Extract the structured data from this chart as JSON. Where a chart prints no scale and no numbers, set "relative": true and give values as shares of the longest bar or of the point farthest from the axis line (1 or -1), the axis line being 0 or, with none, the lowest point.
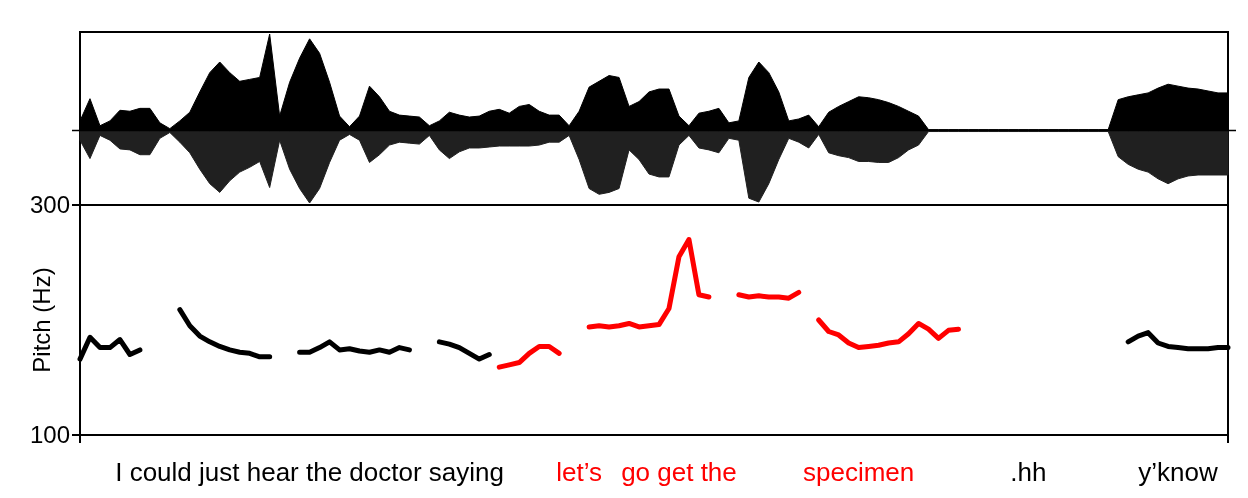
{
  "chart_data": [
    {
      "type": "area",
      "relative": true,
      "categories": [
        null,
        null,
        null,
        null,
        null,
        null,
        null,
        null,
        null,
        null,
        null,
        null,
        null,
        null,
        null,
        null,
        null,
        null,
        null,
        null,
        null,
        null,
        null,
        null,
        null,
        null,
        null,
        null,
        null,
        null,
        null,
        null,
        null,
        null,
        null,
        null,
        null,
        null,
        null,
        null,
        null,
        null,
        null,
        null,
        null,
        null,
        null,
        null,
        null,
        null,
        null,
        null,
        null,
        null,
        null,
        null,
        null,
        null,
        null,
        null,
        null,
        null,
        null,
        null,
        null,
        null,
        null,
        null,
        null,
        null,
        null,
        null,
        null,
        null,
        null,
        null,
        null,
        null,
        null,
        null,
        null,
        null,
        null,
        null,
        null,
        null,
        null,
        null,
        null,
        null,
        null,
        null,
        null,
        null,
        null,
        null,
        null,
        null,
        null,
        null,
        null,
        null,
        null,
        null,
        null,
        null,
        null,
        null,
        null,
        null,
        null,
        null,
        null,
        null,
        null,
        null
      ],
      "series": [
        {
          "color": "#000000",
          "values": [
            0.1,
            0.33,
            0.05,
            0.1,
            0.21,
            0.2,
            0.23,
            0.23,
            0.08,
            0.02,
            0.1,
            0.19,
            0.4,
            0.6,
            0.71,
            0.6,
            0.51,
            0.53,
            0.55,
            1,
            0.15,
            0.5,
            0.75,
            0.95,
            0.8,
            0.5,
            0.15,
            0.04,
            0.15,
            0.46,
            0.35,
            0.2,
            0.16,
            0.15,
            0.14,
            0.05,
            0.1,
            0.19,
            0.16,
            0.14,
            0.15,
            0.2,
            0.22,
            0.18,
            0.25,
            0.27,
            0.2,
            0.16,
            0.16,
            0.05,
            0.2,
            0.45,
            0.51,
            0.57,
            0.55,
            0.25,
            0.3,
            0.4,
            0.43,
            0.43,
            0.15,
            0.05,
            0.18,
            0.2,
            0.23,
            0.08,
            0.1,
            0.55,
            0.71,
            0.6,
            0.4,
            0.1,
            0.12,
            0.16,
            0.04,
            0.19,
            0.25,
            0.3,
            0.35,
            0.34,
            0.32,
            0.29,
            0.25,
            0.2,
            0.15,
            0.01,
            0.01,
            0.01,
            0.01,
            0.01,
            0.01,
            0.01,
            0.01,
            0.01,
            0.01,
            0.01,
            0.01,
            0.01,
            0.01,
            0.01,
            0.01,
            0.01,
            0.01,
            0.01,
            0.32,
            0.35,
            0.37,
            0.39,
            0.44,
            0.48,
            0.46,
            0.44,
            0.43,
            0.41,
            0.39,
            0.39
          ]
        },
        {
          "color": "#202020",
          "values": [
            -0.1,
            -0.29,
            -0.05,
            -0.1,
            -0.19,
            -0.2,
            -0.25,
            -0.25,
            -0.08,
            -0.02,
            -0.12,
            -0.23,
            -0.4,
            -0.55,
            -0.64,
            -0.52,
            -0.43,
            -0.38,
            -0.32,
            -0.59,
            -0.1,
            -0.4,
            -0.6,
            -0.75,
            -0.6,
            -0.33,
            -0.1,
            -0.04,
            -0.1,
            -0.33,
            -0.25,
            -0.15,
            -0.12,
            -0.13,
            -0.14,
            -0.05,
            -0.2,
            -0.29,
            -0.22,
            -0.18,
            -0.18,
            -0.17,
            -0.16,
            -0.16,
            -0.16,
            -0.16,
            -0.15,
            -0.12,
            -0.12,
            -0.05,
            -0.3,
            -0.6,
            -0.66,
            -0.64,
            -0.6,
            -0.2,
            -0.3,
            -0.45,
            -0.48,
            -0.48,
            -0.15,
            -0.05,
            -0.18,
            -0.2,
            -0.23,
            -0.08,
            -0.1,
            -0.7,
            -0.74,
            -0.55,
            -0.3,
            -0.08,
            -0.12,
            -0.18,
            -0.04,
            -0.23,
            -0.26,
            -0.28,
            -0.32,
            -0.32,
            -0.33,
            -0.33,
            -0.28,
            -0.2,
            -0.15,
            -0.01,
            -0.01,
            -0.01,
            -0.01,
            -0.01,
            -0.01,
            -0.01,
            -0.01,
            -0.01,
            -0.01,
            -0.01,
            -0.01,
            -0.01,
            -0.01,
            -0.01,
            -0.01,
            -0.01,
            -0.01,
            -0.01,
            -0.27,
            -0.35,
            -0.4,
            -0.43,
            -0.5,
            -0.55,
            -0.5,
            -0.47,
            -0.46,
            -0.46,
            -0.46,
            -0.46
          ]
        }
      ]
    },
    {
      "type": "line",
      "ylabel": "Pitch (Hz)",
      "ylim": [
        100,
        300
      ],
      "yticks": [
        100,
        300
      ],
      "categories": [
        null,
        null,
        null,
        null,
        null,
        null,
        null,
        null,
        null,
        null,
        null,
        null,
        null,
        null,
        null,
        null,
        null,
        null,
        null,
        null,
        null,
        null,
        null,
        "I could just hear the doctor saying",
        null,
        null,
        null,
        null,
        null,
        null,
        null,
        null,
        null,
        null,
        null,
        null,
        null,
        null,
        null,
        null,
        null,
        null,
        null,
        null,
        null,
        null,
        null,
        null,
        null,
        null,
        "let’s",
        null,
        null,
        null,
        null,
        null,
        null,
        null,
        null,
        null,
        "go get the",
        null,
        null,
        null,
        null,
        null,
        null,
        null,
        null,
        null,
        null,
        null,
        null,
        null,
        null,
        null,
        null,
        null,
        "specimen",
        null,
        null,
        null,
        null,
        null,
        null,
        null,
        null,
        null,
        null,
        null,
        null,
        null,
        null,
        null,
        null,
        ".hh",
        null,
        null,
        null,
        null,
        null,
        null,
        null,
        null,
        null,
        null,
        null,
        null,
        null,
        null,
        "y’know",
        null,
        null,
        null,
        null,
        null
      ],
      "series": [
        {
          "color": "#000000",
          "values": [
            166,
            185,
            176,
            176,
            183,
            170,
            174,
            null,
            null,
            null,
            209,
            195,
            186,
            181,
            177,
            174,
            172,
            171,
            168,
            168,
            null,
            null,
            172,
            172,
            176,
            181,
            174,
            175,
            173,
            172,
            174,
            172,
            176,
            174,
            null,
            null,
            181,
            179,
            176,
            171,
            166,
            170,
            null,
            null,
            null,
            null,
            null,
            null,
            null,
            null,
            null,
            null,
            null,
            null,
            null,
            null,
            null,
            null,
            null,
            null,
            null,
            null,
            null,
            null,
            null,
            null,
            null,
            null,
            null,
            null,
            null,
            null,
            null,
            null,
            null,
            null,
            null,
            null,
            null,
            null,
            null,
            null,
            null,
            null,
            null,
            null,
            null,
            null,
            null,
            null,
            null,
            null,
            null,
            null,
            null,
            null,
            null,
            null,
            null,
            null,
            null,
            null,
            null,
            null,
            null,
            181,
            186,
            189,
            180,
            177,
            176,
            175,
            175,
            175,
            176,
            176
          ]
        },
        {
          "color": "#ff0000",
          "values": [
            null,
            null,
            null,
            null,
            null,
            null,
            null,
            null,
            null,
            null,
            null,
            null,
            null,
            null,
            null,
            null,
            null,
            null,
            null,
            null,
            null,
            null,
            null,
            null,
            null,
            null,
            null,
            null,
            null,
            null,
            null,
            null,
            null,
            null,
            null,
            null,
            null,
            null,
            null,
            null,
            null,
            null,
            159,
            161,
            163,
            171,
            177,
            177,
            171,
            null,
            null,
            194,
            195,
            194,
            195,
            197,
            194,
            195,
            196,
            210,
            255,
            270,
            222,
            220,
            null,
            null,
            222,
            220,
            221,
            220,
            220,
            219,
            224,
            null,
            200,
            190,
            187,
            180,
            176,
            177,
            178,
            180,
            181,
            188,
            197,
            192,
            184,
            191,
            192,
            null,
            null,
            null,
            null,
            null,
            null,
            null,
            null,
            null,
            null,
            null,
            null,
            null,
            null,
            null,
            null,
            null,
            null,
            null,
            null,
            null,
            null,
            null,
            null,
            null,
            null,
            null
          ]
        }
      ]
    }
  ]
}
